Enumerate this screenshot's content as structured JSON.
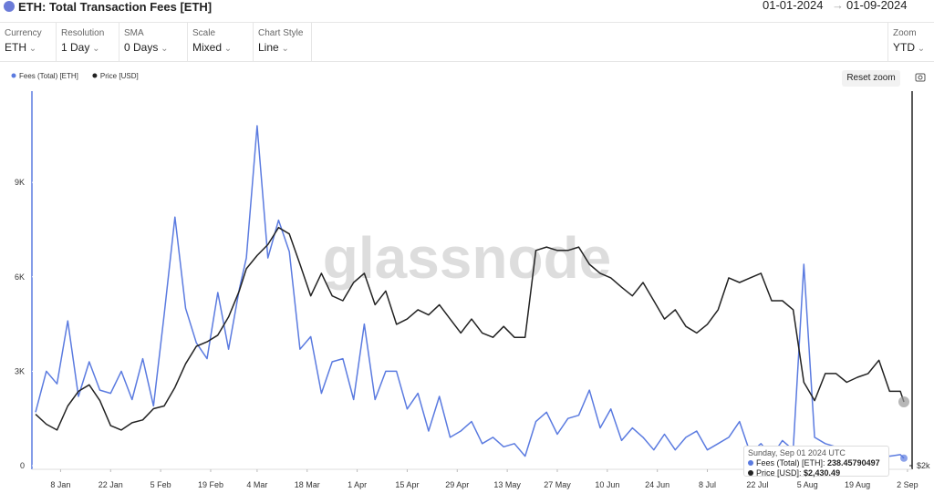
{
  "header": {
    "title": "ETH: Total Transaction Fees [ETH]",
    "date_from": "01-01-2024",
    "date_to": "01-09-2024"
  },
  "controls": [
    {
      "label": "Currency",
      "value": "ETH"
    },
    {
      "label": "Resolution",
      "value": "1 Day"
    },
    {
      "label": "SMA",
      "value": "0 Days"
    },
    {
      "label": "Scale",
      "value": "Mixed"
    },
    {
      "label": "Chart Style",
      "value": "Line"
    },
    {
      "label": "Zoom",
      "value": "YTD"
    }
  ],
  "reset_zoom": "Reset zoom",
  "watermark": "glassnode",
  "tooltip": {
    "date": "Sunday, Sep 01 2024 UTC",
    "price": "$2,430.49"
  },
  "chart_data": {
    "type": "line",
    "x": [
      "1 Jan",
      "4 Jan",
      "7 Jan",
      "10 Jan",
      "13 Jan",
      "16 Jan",
      "19 Jan",
      "22 Jan",
      "25 Jan",
      "28 Jan",
      "31 Jan",
      "3 Feb",
      "6 Feb",
      "9 Feb",
      "12 Feb",
      "15 Feb",
      "18 Feb",
      "21 Feb",
      "24 Feb",
      "27 Feb",
      "1 Mar",
      "4 Mar",
      "7 Mar",
      "10 Mar",
      "13 Mar",
      "16 Mar",
      "19 Mar",
      "22 Mar",
      "25 Mar",
      "28 Mar",
      "31 Mar",
      "3 Apr",
      "6 Apr",
      "9 Apr",
      "12 Apr",
      "15 Apr",
      "18 Apr",
      "21 Apr",
      "24 Apr",
      "27 Apr",
      "30 Apr",
      "3 May",
      "6 May",
      "9 May",
      "12 May",
      "15 May",
      "18 May",
      "21 May",
      "24 May",
      "27 May",
      "30 May",
      "2 Jun",
      "5 Jun",
      "8 Jun",
      "11 Jun",
      "14 Jun",
      "17 Jun",
      "20 Jun",
      "23 Jun",
      "26 Jun",
      "29 Jun",
      "2 Jul",
      "5 Jul",
      "8 Jul",
      "11 Jul",
      "14 Jul",
      "17 Jul",
      "20 Jul",
      "23 Jul",
      "26 Jul",
      "29 Jul",
      "1 Aug",
      "4 Aug",
      "7 Aug",
      "10 Aug",
      "13 Aug",
      "16 Aug",
      "19 Aug",
      "22 Aug",
      "25 Aug",
      "28 Aug",
      "31 Aug",
      "1 Sep"
    ],
    "series": [
      {
        "name": "Fees (Total) [ETH]",
        "color": "#5b7be0",
        "axis": "y",
        "values": [
          1700,
          3000,
          2600,
          4600,
          2200,
          3300,
          2400,
          2300,
          3000,
          2100,
          3400,
          1900,
          4800,
          7900,
          5000,
          3900,
          3400,
          5500,
          3700,
          5600,
          6600,
          10800,
          6600,
          7800,
          6800,
          3700,
          4100,
          2300,
          3300,
          3400,
          2100,
          4500,
          2100,
          3000,
          3000,
          1800,
          2300,
          1100,
          2200,
          900,
          1100,
          1400,
          700,
          900,
          600,
          700,
          300,
          1400,
          1700,
          1000,
          1500,
          1600,
          2400,
          1200,
          1800,
          800,
          1200,
          900,
          500,
          1000,
          500,
          900,
          1100,
          500,
          700,
          900,
          1400,
          400,
          700,
          300,
          800,
          500,
          6400,
          900,
          700,
          600,
          500,
          300,
          400,
          500,
          300,
          350,
          238.45790497
        ]
      },
      {
        "name": "Price [USD]",
        "color": "#222222",
        "axis": "y2",
        "values": [
          2340,
          2270,
          2230,
          2400,
          2510,
          2560,
          2440,
          2260,
          2230,
          2280,
          2300,
          2380,
          2400,
          2540,
          2730,
          2880,
          2920,
          2980,
          3150,
          3410,
          3650,
          3800,
          3930,
          4140,
          4060,
          3700,
          3360,
          3600,
          3360,
          3310,
          3500,
          3600,
          3270,
          3410,
          3080,
          3130,
          3220,
          3170,
          3270,
          3130,
          3000,
          3130,
          3000,
          2960,
          3060,
          2960,
          2960,
          3860,
          3900,
          3860,
          3860,
          3900,
          3700,
          3600,
          3550,
          3450,
          3360,
          3500,
          3310,
          3130,
          3220,
          3060,
          3000,
          3080,
          3220,
          3550,
          3500,
          3550,
          3600,
          3310,
          3310,
          3220,
          2580,
          2440,
          2650,
          2650,
          2580,
          2620,
          2650,
          2760,
          2510,
          2510,
          2430.49
        ]
      }
    ],
    "xticks": [
      "8 Jan",
      "22 Jan",
      "5 Feb",
      "19 Feb",
      "4 Mar",
      "18 Mar",
      "1 Apr",
      "15 Apr",
      "29 Apr",
      "13 May",
      "27 May",
      "10 Jun",
      "24 Jun",
      "8 Jul",
      "22 Jul",
      "5 Aug",
      "19 Aug",
      "2 Sep"
    ],
    "ylim": [
      0,
      11900
    ],
    "yticks": [
      0,
      {
        "value": 3000,
        "label": "3K"
      },
      {
        "value": 6000,
        "label": "6K"
      },
      {
        "value": 9000,
        "label": "9K"
      }
    ],
    "y2lim": [
      2000,
      6280
    ],
    "y2ticks": [
      {
        "value": 2000,
        "label": "$2k"
      }
    ],
    "y2log": true,
    "grid": false,
    "legend": "top-left"
  }
}
